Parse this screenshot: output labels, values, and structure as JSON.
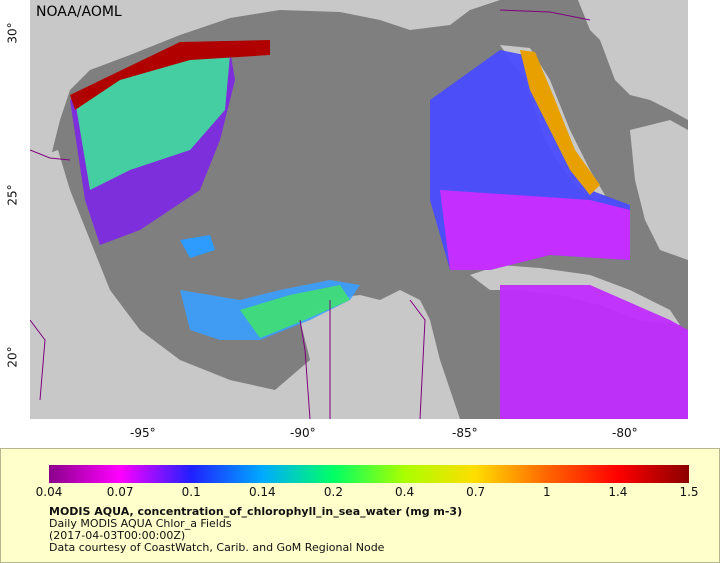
{
  "map": {
    "credit": "NOAA/AOML",
    "lon_labels": [
      "-95°",
      "-90°",
      "-85°",
      "-80°"
    ],
    "lat_labels": [
      "30°",
      "25°",
      "20°"
    ],
    "colors": {
      "ocean_nodata": "#7f7f7f",
      "land": "#c8c8c8",
      "border": "#800080"
    }
  },
  "legend": {
    "colorbar_ticks": [
      "0.04",
      "0.07",
      "0.1",
      "0.14",
      "0.2",
      "0.4",
      "0.7",
      "1",
      "1.4",
      "1.5"
    ],
    "colorbar_colors": [
      "#8b008b",
      "#ff00ff",
      "#2020ff",
      "#00aaff",
      "#00ff66",
      "#aaff00",
      "#ffdd00",
      "#ff6600",
      "#ff0000",
      "#8b0000"
    ],
    "title": "MODIS AQUA, concentration_of_chlorophyll_in_sea_water (mg m-3)",
    "subtitle": "Daily MODIS AQUA Chlor_a Fields",
    "time": "(2017-04-03T00:00:00Z)",
    "courtesy": "Data courtesy of CoastWatch, Carib. and GoM Regional Node"
  }
}
